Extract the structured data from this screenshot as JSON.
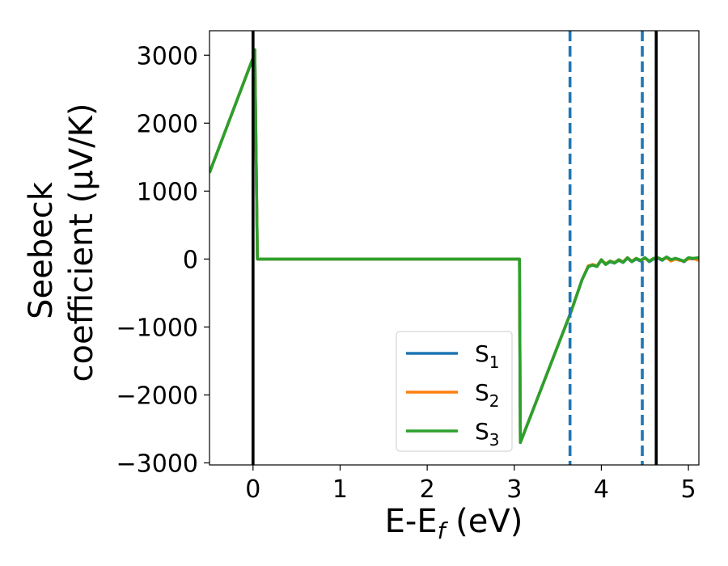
{
  "chart_data": {
    "type": "line",
    "xlabel": {
      "main": "E-E",
      "sub": "f",
      "suffix": " (eV)"
    },
    "ylabel": {
      "line1": "Seebeck",
      "line2": "coefficient  (μV/K)"
    },
    "xlim": [
      -0.5,
      5.12
    ],
    "ylim": [
      -3030,
      3360
    ],
    "xticks": [
      0,
      1,
      2,
      3,
      4,
      5
    ],
    "yticks": [
      3000,
      2000,
      1000,
      0,
      -1000,
      -2000,
      -3000
    ],
    "ytick_labels": [
      "3000",
      "2000",
      "1000",
      "0",
      "−1000",
      "−2000",
      "−3000"
    ],
    "grid": false,
    "legend_position": "lower-center",
    "series": [
      {
        "name": "S",
        "sub": "1",
        "color": "#1f77b4",
        "x": [
          -0.5,
          0.0,
          0.02,
          0.05,
          3.06,
          3.07,
          3.65,
          3.78,
          3.85,
          3.9,
          3.95,
          4.0,
          4.05,
          4.1,
          4.15,
          4.2,
          4.25,
          4.3,
          4.35,
          4.4,
          4.45,
          4.5,
          4.55,
          4.6,
          4.65,
          4.7,
          4.75,
          4.8,
          4.85,
          4.9,
          4.95,
          5.0,
          5.05,
          5.12
        ],
        "y": [
          1270,
          2960,
          3080,
          0,
          0,
          -2700,
          -780,
          -300,
          -110,
          -90,
          -110,
          -20,
          -80,
          -40,
          -60,
          -20,
          -50,
          10,
          -40,
          0,
          -30,
          20,
          -40,
          0,
          10,
          -20,
          30,
          -20,
          10,
          -10,
          -40,
          10,
          0,
          10
        ]
      },
      {
        "name": "S",
        "sub": "2",
        "color": "#ff7f0e",
        "x": [
          -0.5,
          0.0,
          0.02,
          0.05,
          3.06,
          3.07,
          3.65,
          3.78,
          3.85,
          3.9,
          3.95,
          4.0,
          4.05,
          4.1,
          4.15,
          4.2,
          4.25,
          4.3,
          4.35,
          4.4,
          4.45,
          4.5,
          4.55,
          4.6,
          4.65,
          4.7,
          4.75,
          4.8,
          4.85,
          4.9,
          4.95,
          5.0,
          5.05,
          5.12
        ],
        "y": [
          1270,
          2960,
          3080,
          0,
          0,
          -2700,
          -780,
          -300,
          -100,
          -80,
          -100,
          -10,
          -70,
          -30,
          -50,
          -10,
          -40,
          20,
          -30,
          10,
          -20,
          10,
          -30,
          10,
          20,
          -10,
          20,
          -30,
          0,
          -20,
          -30,
          0,
          10,
          -20
        ]
      },
      {
        "name": "S",
        "sub": "3",
        "color": "#2ca02c",
        "x": [
          -0.5,
          0.0,
          0.02,
          0.05,
          3.06,
          3.07,
          3.65,
          3.78,
          3.85,
          3.9,
          3.95,
          4.0,
          4.05,
          4.1,
          4.15,
          4.2,
          4.25,
          4.3,
          4.35,
          4.4,
          4.45,
          4.5,
          4.55,
          4.6,
          4.65,
          4.7,
          4.75,
          4.8,
          4.85,
          4.9,
          4.95,
          5.0,
          5.05,
          5.12
        ],
        "y": [
          1270,
          2960,
          3080,
          0,
          0,
          -2700,
          -780,
          -300,
          -110,
          -90,
          -110,
          -10,
          -80,
          -30,
          -60,
          -10,
          -50,
          20,
          -40,
          10,
          -20,
          20,
          -30,
          10,
          20,
          -10,
          30,
          -10,
          10,
          -10,
          -30,
          20,
          10,
          20
        ]
      }
    ],
    "vlines": [
      {
        "x": 0.0,
        "style": "solid",
        "color": "#000000"
      },
      {
        "x": 4.63,
        "style": "solid",
        "color": "#000000"
      },
      {
        "x": 3.64,
        "style": "dashed",
        "color": "#1f77b4"
      },
      {
        "x": 4.47,
        "style": "dashed",
        "color": "#1f77b4"
      }
    ]
  }
}
